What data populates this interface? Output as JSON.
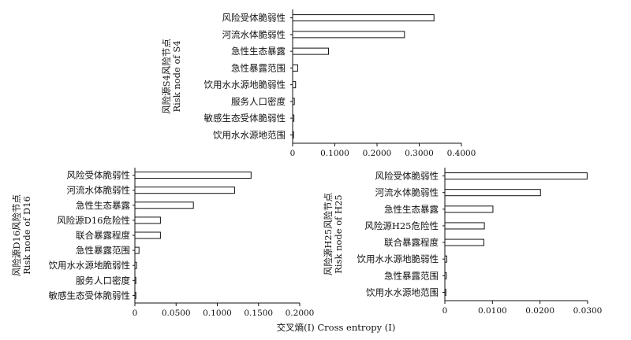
{
  "figure": {
    "xlabel": "交叉熵(I) Cross entropy (I)"
  },
  "chart_data": [
    {
      "type": "bar",
      "orientation": "horizontal",
      "ylabel_cn": "风险源S4风险节点",
      "ylabel_en": "Risk node of S4",
      "categories": [
        "风险受体脆弱性",
        "河流水体脆弱性",
        "急性生态暴露",
        "急性暴露范围",
        "饮用水水源地脆弱性",
        "服务人口密度",
        "敏感生态受体脆弱性",
        "饮用水水源地范围"
      ],
      "values": [
        0.335,
        0.265,
        0.085,
        0.012,
        0.007,
        0.004,
        0.003,
        0.0015
      ],
      "xlim": [
        0,
        0.4
      ],
      "xticks": [
        0,
        0.1,
        0.2,
        0.3,
        0.4
      ],
      "xtick_labels": [
        "0",
        "0.1000",
        "0.2000",
        "0.3000",
        "0.4000"
      ]
    },
    {
      "type": "bar",
      "orientation": "horizontal",
      "ylabel_cn": "风险源D16风险节点",
      "ylabel_en": "Risk node of D16",
      "categories": [
        "风险受体脆弱性",
        "河流水体脆弱性",
        "急性生态暴露",
        "风险源D16危险性",
        "联合暴露程度",
        "急性暴露范围",
        "饮用水水源地脆弱性",
        "服务人口密度",
        "敏感生态受体脆弱性"
      ],
      "values": [
        0.141,
        0.121,
        0.071,
        0.031,
        0.031,
        0.005,
        0.002,
        0.001,
        0.0008
      ],
      "xlim": [
        0,
        0.2
      ],
      "xticks": [
        0,
        0.05,
        0.1,
        0.15,
        0.2
      ],
      "xtick_labels": [
        "0",
        "0.0500",
        "0.1000",
        "0.1500",
        "0.2000"
      ]
    },
    {
      "type": "bar",
      "orientation": "horizontal",
      "ylabel_cn": "风险源H25风险节点",
      "ylabel_en": "Risk node of H25",
      "categories": [
        "风险受体脆弱性",
        "河流水体脆弱性",
        "急性生态暴露",
        "风险源H25危险性",
        "联合暴露程度",
        "饮用水水源地脆弱性",
        "急性暴露范围",
        "饮用水水源地范围"
      ],
      "values": [
        0.0299,
        0.0201,
        0.0101,
        0.0083,
        0.0082,
        0.0004,
        0.0003,
        0.0001
      ],
      "xlim": [
        0,
        0.03
      ],
      "xticks": [
        0,
        0.01,
        0.02,
        0.03
      ],
      "xtick_labels": [
        "0",
        "0.0100",
        "0.0200",
        "0.0300"
      ]
    }
  ]
}
